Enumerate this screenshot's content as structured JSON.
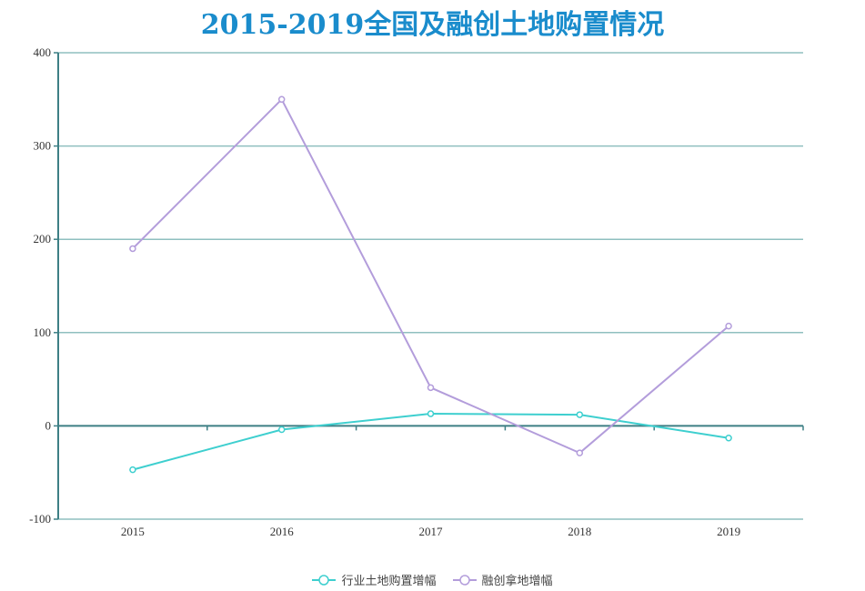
{
  "chart_data": {
    "type": "line",
    "title": "2015-2019全国及融创土地购置情况",
    "xlabel": "",
    "ylabel": "",
    "categories": [
      "2015",
      "2016",
      "2017",
      "2018",
      "2019"
    ],
    "series": [
      {
        "name": "行业土地购置增幅",
        "color": "#3ecfcf",
        "values": [
          -47,
          -4,
          13,
          12,
          -13
        ]
      },
      {
        "name": "融创拿地增幅",
        "color": "#b39ddb",
        "values": [
          190,
          350,
          41,
          -29,
          107
        ]
      }
    ],
    "ylim": [
      -100,
      400
    ],
    "yticks": [
      400,
      300,
      200,
      100,
      0,
      -100
    ],
    "grid": true,
    "legend_position": "bottom"
  },
  "colors": {
    "title": "#1a8ccc",
    "grid": "#8fbfbf",
    "axis": "#3d7f85"
  }
}
